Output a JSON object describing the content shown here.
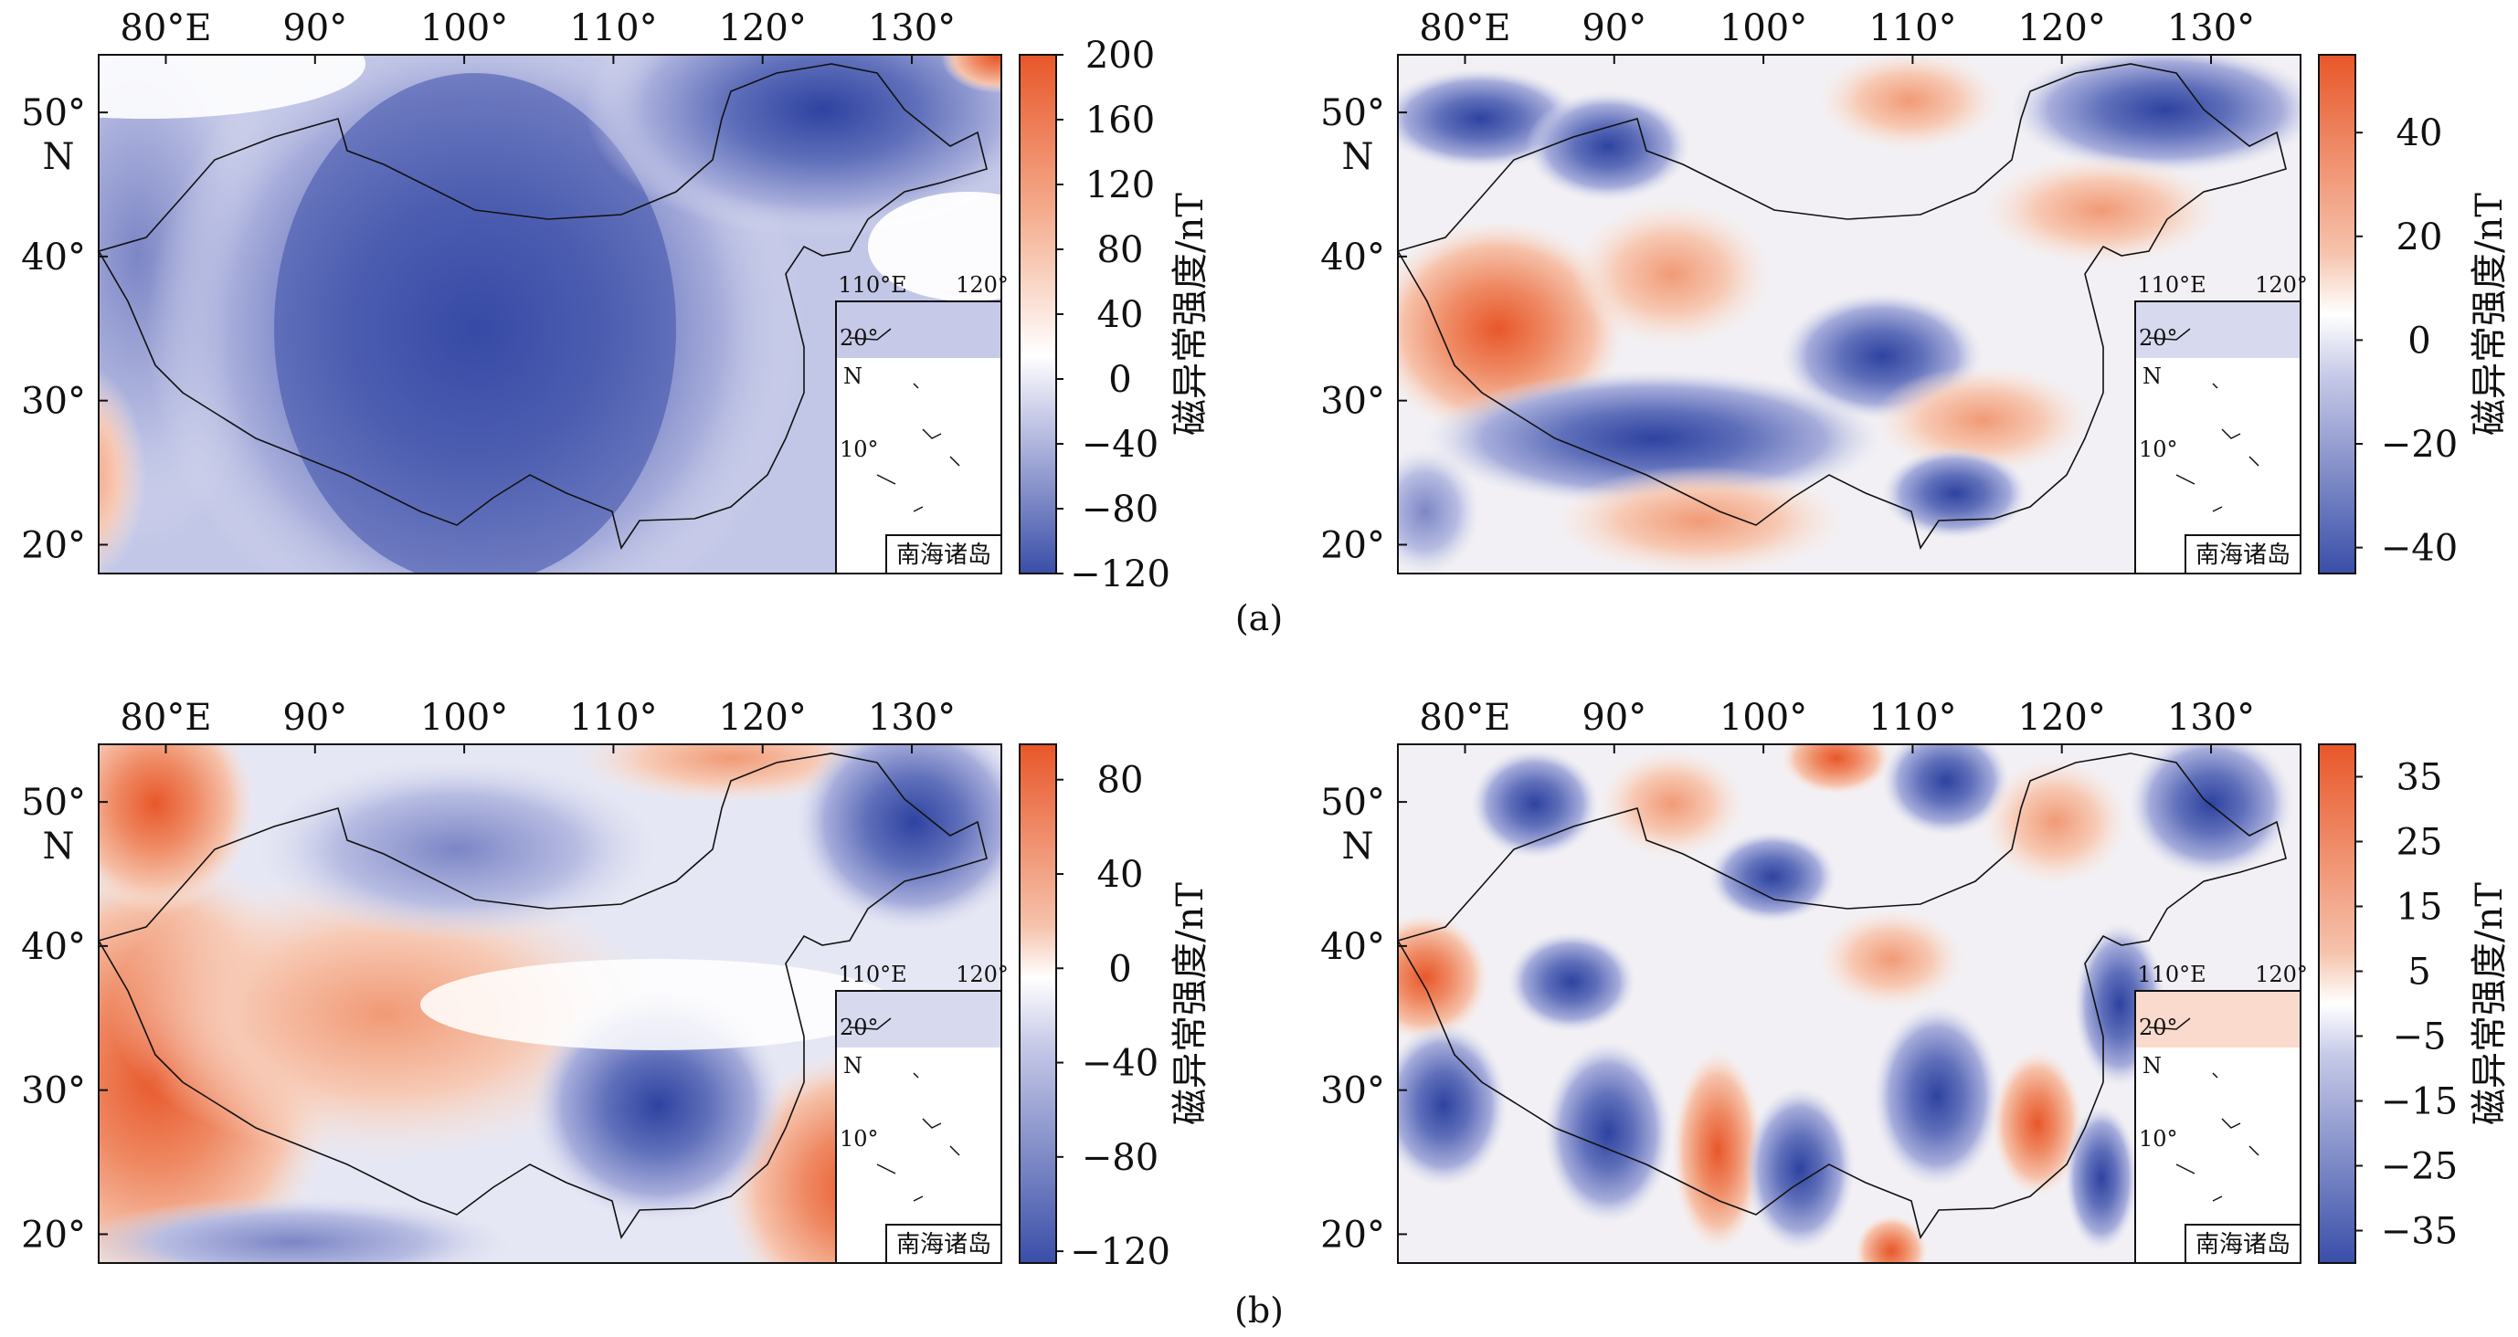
{
  "colors": {
    "neg": "#3a4ea8",
    "pos": "#e8572a",
    "white": "#ffffff"
  },
  "captions": [
    "(a)",
    "(b)"
  ],
  "inset": {
    "xticks": [
      "110°E",
      "120°"
    ],
    "yticks": [
      "20°",
      "10°"
    ],
    "n_label": "N",
    "label": "南海诸岛"
  },
  "panels": [
    {
      "id": "a-left",
      "lon_ticks": [
        "80°E",
        "90°",
        "100°",
        "110°",
        "120°",
        "130°"
      ],
      "lat_ticks": [
        "50°",
        "40°",
        "30°",
        "20°"
      ],
      "lat_n": "N",
      "colorbar": {
        "title": "磁异常强度/nT",
        "ticks": [
          "200",
          "160",
          "120",
          "80",
          "40",
          "0",
          "−40",
          "−80",
          "−120"
        ],
        "min": -120,
        "max": 200
      }
    },
    {
      "id": "a-right",
      "lon_ticks": [
        "80°E",
        "90°",
        "100°",
        "110°",
        "120°",
        "130°"
      ],
      "lat_ticks": [
        "50°",
        "40°",
        "30°",
        "20°"
      ],
      "lat_n": "N",
      "colorbar": {
        "title": "磁异常强度/nT",
        "ticks": [
          "40",
          "20",
          "0",
          "−20",
          "−40"
        ],
        "min": -45,
        "max": 55
      }
    },
    {
      "id": "b-left",
      "lon_ticks": [
        "80°E",
        "90°",
        "100°",
        "110°",
        "120°",
        "130°"
      ],
      "lat_ticks": [
        "50°",
        "40°",
        "30°",
        "20°"
      ],
      "lat_n": "N",
      "colorbar": {
        "title": "磁异常强度/nT",
        "ticks": [
          "80",
          "40",
          "0",
          "−40",
          "−80",
          "−120"
        ],
        "min": -125,
        "max": 95
      }
    },
    {
      "id": "b-right",
      "lon_ticks": [
        "80°E",
        "90°",
        "100°",
        "110°",
        "120°",
        "130°"
      ],
      "lat_ticks": [
        "50°",
        "40°",
        "30°",
        "20°"
      ],
      "lat_n": "N",
      "colorbar": {
        "title": "磁异常强度/nT",
        "ticks": [
          "35",
          "25",
          "15",
          "5",
          "−5",
          "−15",
          "−25",
          "−35"
        ],
        "min": -40,
        "max": 40
      }
    }
  ]
}
